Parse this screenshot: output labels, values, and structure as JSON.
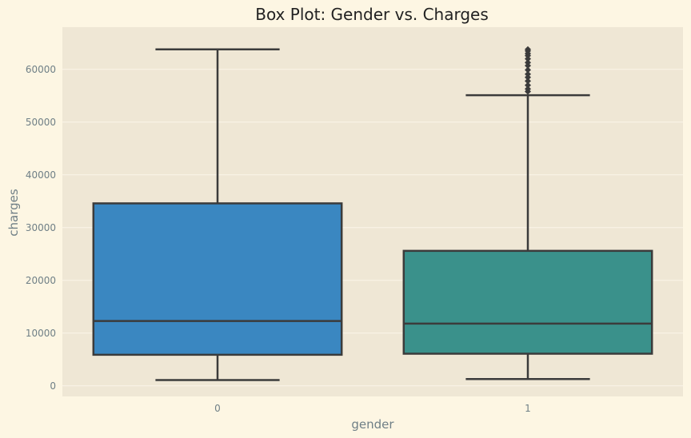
{
  "chart_data": {
    "type": "box",
    "title": "Box Plot: Gender vs. Charges",
    "xlabel": "gender",
    "ylabel": "charges",
    "categories": [
      "0",
      "1"
    ],
    "ylim": [
      -2000,
      68000
    ],
    "yticks": [
      0,
      10000,
      20000,
      30000,
      40000,
      50000,
      60000
    ],
    "ytick_labels": [
      "0",
      "10000",
      "20000",
      "30000",
      "40000",
      "50000",
      "60000"
    ],
    "grid": true,
    "series": [
      {
        "category": "0",
        "whisker_low": 1100,
        "q1": 5900,
        "median": 12300,
        "q3": 34600,
        "whisker_high": 63800,
        "outliers": [],
        "color": "#3a87c1"
      },
      {
        "category": "1",
        "whisker_low": 1300,
        "q1": 6100,
        "median": 11800,
        "q3": 25600,
        "whisker_high": 55100,
        "outliers": [
          55800,
          56300,
          57000,
          57800,
          58500,
          59100,
          59900,
          60700,
          61300,
          62000,
          62600,
          63000,
          63500,
          63800
        ],
        "color": "#3a918b"
      }
    ],
    "colors": {
      "page_background": "#fdf6e3",
      "plot_background": "#efe7d5",
      "grid": "#fbf6ea",
      "box_edge": "#3b3b3b"
    }
  }
}
